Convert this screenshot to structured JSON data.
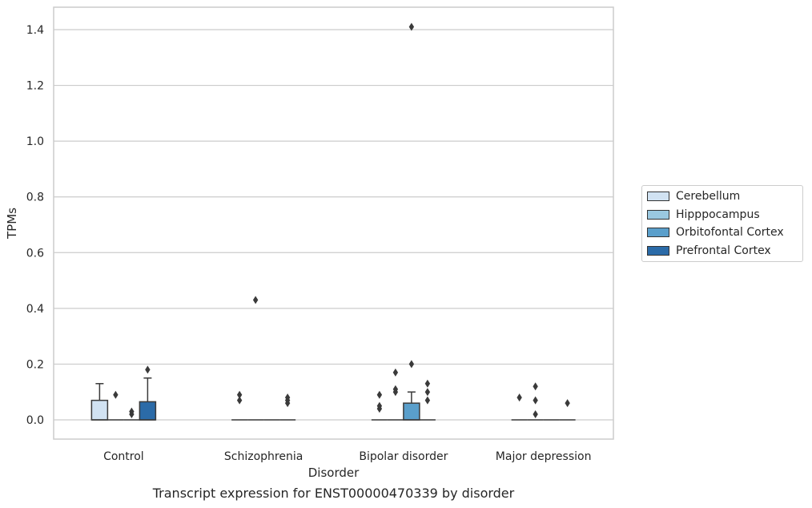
{
  "chart_data": {
    "type": "box",
    "xlabel": "Disorder",
    "ylabel": "TPMs",
    "caption": "Transcript expression for ENST00000470339 by disorder",
    "ylim": [
      -0.07,
      1.48
    ],
    "yticks": [
      0.0,
      0.2,
      0.4,
      0.6,
      0.8,
      1.0,
      1.2,
      1.4
    ],
    "ytick_labels": [
      "0.0",
      "0.2",
      "0.4",
      "0.6",
      "0.8",
      "1.0",
      "1.2",
      "1.4"
    ],
    "grid": true,
    "legend_position": "right",
    "categories": [
      "Control",
      "Schizophrenia",
      "Bipolar disorder",
      "Major depression"
    ],
    "series": [
      {
        "name": "Cerebellum",
        "color": "#d1e2f2",
        "boxes": [
          {
            "q1": 0.0,
            "median": 0.0,
            "q3": 0.07,
            "whisker_low": 0.0,
            "whisker_high": 0.13,
            "outliers": []
          },
          {
            "q1": 0.0,
            "median": 0.0,
            "q3": 0.0,
            "whisker_low": 0.0,
            "whisker_high": 0.0,
            "outliers": [
              0.07,
              0.09
            ]
          },
          {
            "q1": 0.0,
            "median": 0.0,
            "q3": 0.0,
            "whisker_low": 0.0,
            "whisker_high": 0.0,
            "outliers": [
              0.04,
              0.05,
              0.09
            ]
          },
          {
            "q1": 0.0,
            "median": 0.0,
            "q3": 0.0,
            "whisker_low": 0.0,
            "whisker_high": 0.0,
            "outliers": [
              0.08
            ]
          }
        ]
      },
      {
        "name": "Hipppocampus",
        "color": "#9ac8e0",
        "boxes": [
          {
            "q1": 0.0,
            "median": 0.0,
            "q3": 0.0,
            "whisker_low": 0.0,
            "whisker_high": 0.0,
            "outliers": [
              0.09
            ]
          },
          {
            "q1": 0.0,
            "median": 0.0,
            "q3": 0.0,
            "whisker_low": 0.0,
            "whisker_high": 0.0,
            "outliers": [
              0.43
            ]
          },
          {
            "q1": 0.0,
            "median": 0.0,
            "q3": 0.0,
            "whisker_low": 0.0,
            "whisker_high": 0.0,
            "outliers": [
              0.1,
              0.11,
              0.17
            ]
          },
          {
            "q1": 0.0,
            "median": 0.0,
            "q3": 0.0,
            "whisker_low": 0.0,
            "whisker_high": 0.0,
            "outliers": [
              0.02,
              0.07,
              0.12
            ]
          }
        ]
      },
      {
        "name": "Orbitofontal Cortex",
        "color": "#5a9fcb",
        "boxes": [
          {
            "q1": 0.0,
            "median": 0.0,
            "q3": 0.0,
            "whisker_low": 0.0,
            "whisker_high": 0.0,
            "outliers": [
              0.02,
              0.03
            ]
          },
          {
            "q1": 0.0,
            "median": 0.0,
            "q3": 0.0,
            "whisker_low": 0.0,
            "whisker_high": 0.0,
            "outliers": []
          },
          {
            "q1": 0.0,
            "median": 0.0,
            "q3": 0.06,
            "whisker_low": 0.0,
            "whisker_high": 0.1,
            "outliers": [
              0.2,
              1.41
            ]
          },
          {
            "q1": 0.0,
            "median": 0.0,
            "q3": 0.0,
            "whisker_low": 0.0,
            "whisker_high": 0.0,
            "outliers": []
          }
        ]
      },
      {
        "name": "Prefrontal Cortex",
        "color": "#2b6ba8",
        "boxes": [
          {
            "q1": 0.0,
            "median": 0.0,
            "q3": 0.065,
            "whisker_low": 0.0,
            "whisker_high": 0.15,
            "outliers": [
              0.18
            ]
          },
          {
            "q1": 0.0,
            "median": 0.0,
            "q3": 0.0,
            "whisker_low": 0.0,
            "whisker_high": 0.0,
            "outliers": [
              0.06,
              0.07,
              0.08
            ]
          },
          {
            "q1": 0.0,
            "median": 0.0,
            "q3": 0.0,
            "whisker_low": 0.0,
            "whisker_high": 0.0,
            "outliers": [
              0.07,
              0.1,
              0.13
            ]
          },
          {
            "q1": 0.0,
            "median": 0.0,
            "q3": 0.0,
            "whisker_low": 0.0,
            "whisker_high": 0.0,
            "outliers": [
              0.06
            ]
          }
        ]
      }
    ]
  }
}
